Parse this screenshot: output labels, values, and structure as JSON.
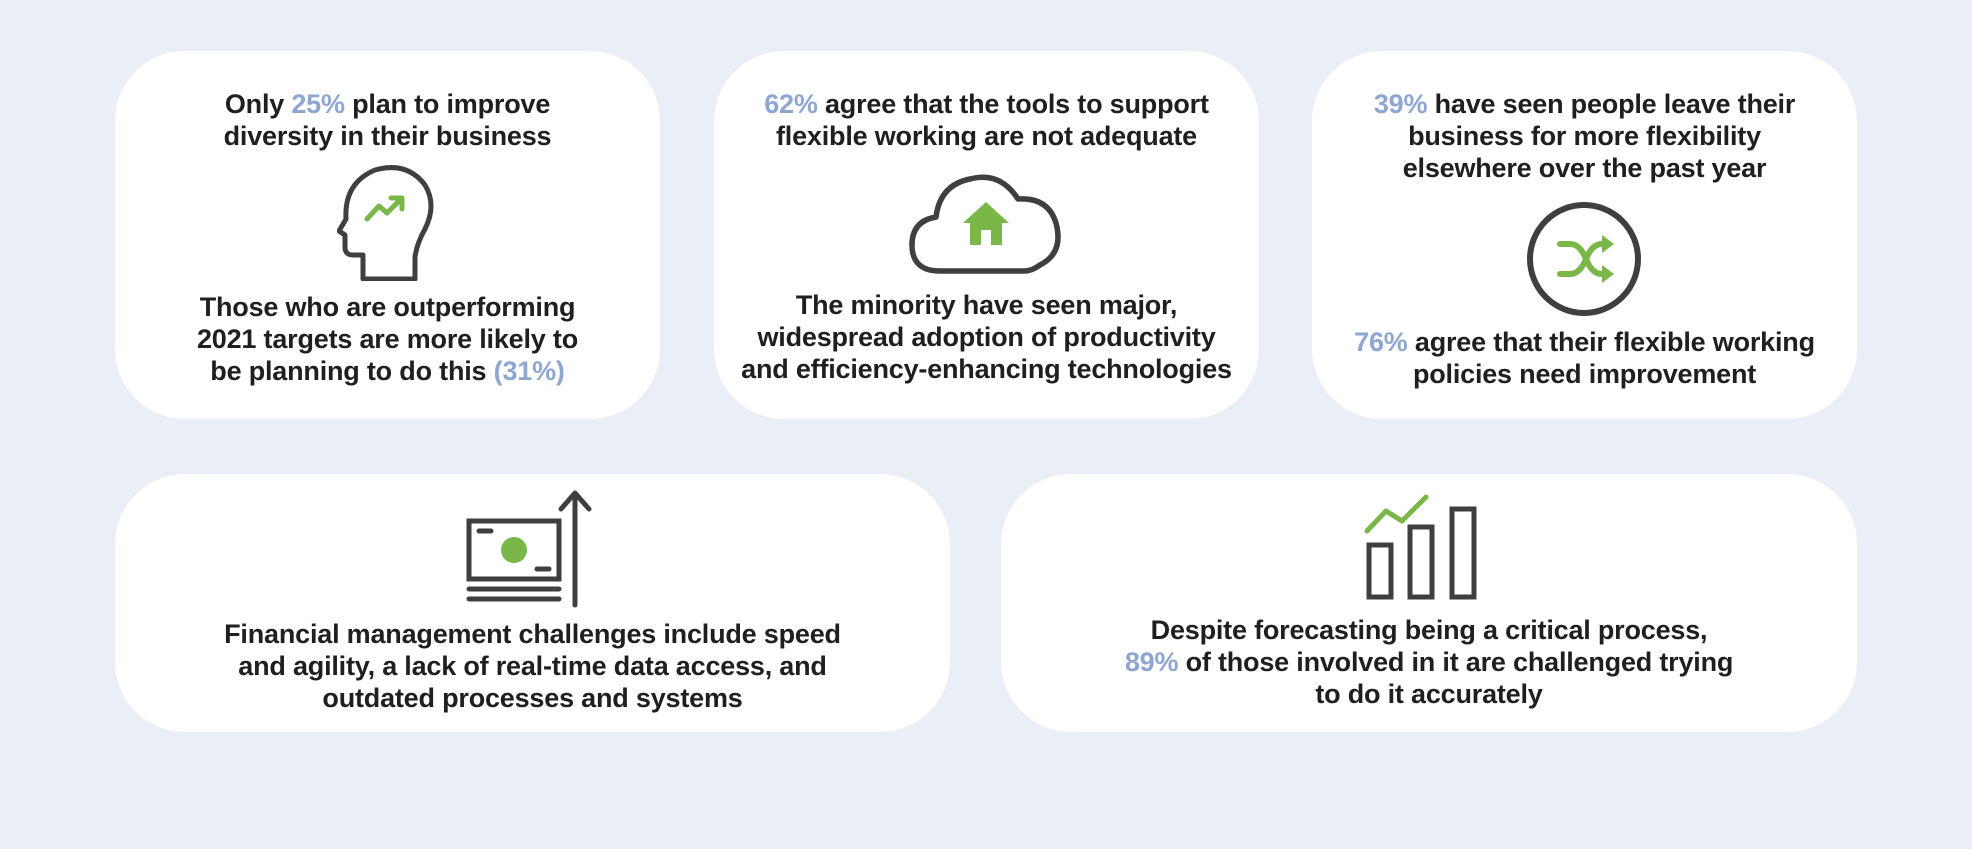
{
  "colors": {
    "background": "#e9eef7",
    "card": "#ffffff",
    "text": "#1f1f1f",
    "highlight": "#8ea6d1",
    "icon_stroke": "#3f3f3f",
    "icon_accent": "#7ab648"
  },
  "cards": [
    {
      "icon": "head-growth-icon",
      "top_lines": [
        {
          "pre": "Only ",
          "hl": "25%",
          "post": " plan to improve"
        },
        {
          "pre": "diversity in their business",
          "hl": "",
          "post": ""
        }
      ],
      "bottom_lines": [
        {
          "pre": "Those who are outperforming",
          "hl": "",
          "post": ""
        },
        {
          "pre": "2021 targets are more likely to",
          "hl": "",
          "post": ""
        },
        {
          "pre": "be planning to do this ",
          "hl": "(31%)",
          "post": ""
        }
      ]
    },
    {
      "icon": "cloud-home-icon",
      "top_lines": [
        {
          "pre": "",
          "hl": "62%",
          "post": " agree that the tools to support"
        },
        {
          "pre": "flexible working are not adequate",
          "hl": "",
          "post": ""
        }
      ],
      "bottom_lines": [
        {
          "pre": "The minority have seen major,",
          "hl": "",
          "post": ""
        },
        {
          "pre": "widespread adoption of productivity",
          "hl": "",
          "post": ""
        },
        {
          "pre": "and efficiency-enhancing technologies",
          "hl": "",
          "post": ""
        }
      ]
    },
    {
      "icon": "shuffle-circle-icon",
      "top_lines": [
        {
          "pre": "",
          "hl": "39%",
          "post": " have seen people leave their"
        },
        {
          "pre": "business for more flexibility",
          "hl": "",
          "post": ""
        },
        {
          "pre": "elsewhere over the past year",
          "hl": "",
          "post": ""
        }
      ],
      "bottom_lines": [
        {
          "pre": "",
          "hl": "76%",
          "post": " agree that their flexible working"
        },
        {
          "pre": "policies need improvement",
          "hl": "",
          "post": ""
        }
      ]
    },
    {
      "icon": "money-growth-icon",
      "top_lines": [
        {
          "pre": "Financial management challenges include speed",
          "hl": "",
          "post": ""
        },
        {
          "pre": "and agility, a lack of real-time data access, and",
          "hl": "",
          "post": ""
        },
        {
          "pre": "outdated processes and systems",
          "hl": "",
          "post": ""
        }
      ]
    },
    {
      "icon": "bar-chart-trend-icon",
      "top_lines": [
        {
          "pre": "Despite forecasting being a critical process,",
          "hl": "",
          "post": ""
        },
        {
          "pre": "",
          "hl": "89%",
          "post": " of those involved in it are challenged trying"
        },
        {
          "pre": "to do it accurately",
          "hl": "",
          "post": ""
        }
      ]
    }
  ]
}
